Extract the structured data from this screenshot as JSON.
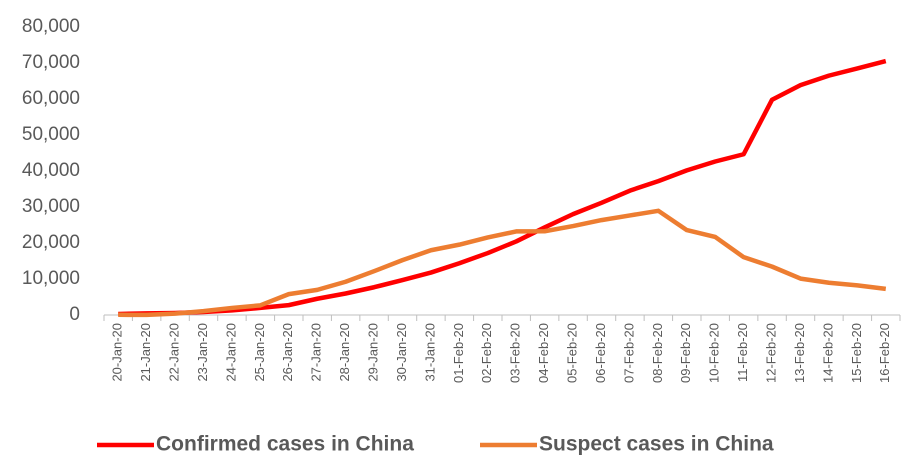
{
  "chart_data": {
    "type": "line",
    "categories": [
      "20-Jan-20",
      "21-Jan-20",
      "22-Jan-20",
      "23-Jan-20",
      "24-Jan-20",
      "25-Jan-20",
      "26-Jan-20",
      "27-Jan-20",
      "28-Jan-20",
      "29-Jan-20",
      "30-Jan-20",
      "31-Jan-20",
      "01-Feb-20",
      "02-Feb-20",
      "03-Feb-20",
      "04-Feb-20",
      "05-Feb-20",
      "06-Feb-20",
      "07-Feb-20",
      "08-Feb-20",
      "09-Feb-20",
      "10-Feb-20",
      "11-Feb-20",
      "12-Feb-20",
      "13-Feb-20",
      "14-Feb-20",
      "15-Feb-20",
      "16-Feb-20"
    ],
    "series": [
      {
        "name": "Confirmed cases in China",
        "color": "#ff0000",
        "values": [
          291,
          440,
          571,
          830,
          1287,
          1975,
          2744,
          4515,
          5974,
          7711,
          9692,
          11791,
          14380,
          17205,
          20438,
          24324,
          28018,
          31161,
          34546,
          37198,
          40171,
          42638,
          44653,
          59804,
          63851,
          66492,
          68500,
          70548
        ]
      },
      {
        "name": "Suspect cases in China",
        "color": "#ed7d31",
        "values": [
          54,
          37,
          393,
          1072,
          1965,
          2684,
          5794,
          6973,
          9239,
          12167,
          15238,
          17988,
          19544,
          21558,
          23214,
          23260,
          24702,
          26359,
          27657,
          28942,
          23589,
          21675,
          16067,
          13435,
          10109,
          8969,
          8228,
          7264
        ]
      }
    ],
    "ylim": [
      0,
      80000
    ],
    "yticks": [
      0,
      {
        "value": 10000,
        "label": "10,000"
      },
      {
        "value": 20000,
        "label": "20,000"
      },
      {
        "value": 30000,
        "label": "30,000"
      },
      {
        "value": 40000,
        "label": "40,000"
      },
      {
        "value": 50000,
        "label": "50,000"
      },
      {
        "value": 60000,
        "label": "60,000"
      },
      {
        "value": 70000,
        "label": "70,000"
      },
      {
        "value": 80000,
        "label": "80,000"
      }
    ],
    "grid": false,
    "legend": "bottom"
  }
}
